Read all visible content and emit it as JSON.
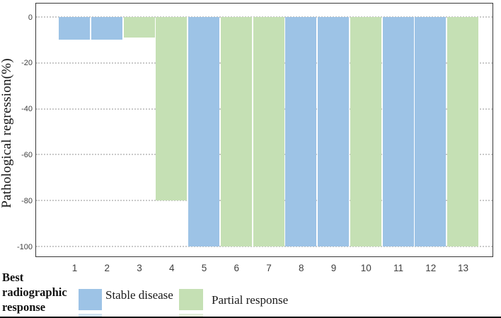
{
  "chart_data": {
    "type": "bar",
    "subtype": "waterfall",
    "title": "",
    "xlabel": "",
    "ylabel": "Pathological regression(%)",
    "ylim": [
      -100,
      0
    ],
    "yticks": [
      0,
      -20,
      -40,
      -60,
      -80,
      -100
    ],
    "grid": "horizontal dotted",
    "legend_position": "bottom",
    "categories": [
      "1",
      "2",
      "3",
      "4",
      "5",
      "6",
      "7",
      "8",
      "9",
      "10",
      "11",
      "12",
      "13"
    ],
    "bars": [
      {
        "patient": "1",
        "value": -10,
        "response": "Stable disease"
      },
      {
        "patient": "2",
        "value": -10,
        "response": "Stable disease"
      },
      {
        "patient": "3",
        "value": -9,
        "response": "Partial response"
      },
      {
        "patient": "4",
        "value": -80,
        "response": "Partial response"
      },
      {
        "patient": "5",
        "value": -100,
        "response": "Stable disease"
      },
      {
        "patient": "6",
        "value": -100,
        "response": "Partial response"
      },
      {
        "patient": "7",
        "value": -100,
        "response": "Partial response"
      },
      {
        "patient": "8",
        "value": -100,
        "response": "Stable disease"
      },
      {
        "patient": "9",
        "value": -100,
        "response": "Stable disease"
      },
      {
        "patient": "10",
        "value": -100,
        "response": "Partial response"
      },
      {
        "patient": "11",
        "value": -100,
        "response": "Stable disease"
      },
      {
        "patient": "12",
        "value": -100,
        "response": "Stable disease"
      },
      {
        "patient": "13",
        "value": -100,
        "response": "Partial response"
      }
    ],
    "legend": {
      "title": "Best radiographic response",
      "entries": [
        {
          "label": "Stable disease",
          "color": "#9dc3e6"
        },
        {
          "label": "Partial response",
          "color": "#c5e0b4"
        }
      ]
    }
  },
  "colors": {
    "stable_disease_blue": "#9dc3e6",
    "partial_response_green": "#c5e0b4",
    "plot_frame": "#383838",
    "gridline": "#c9c9c9",
    "tick_text": "#3f3f3f"
  }
}
